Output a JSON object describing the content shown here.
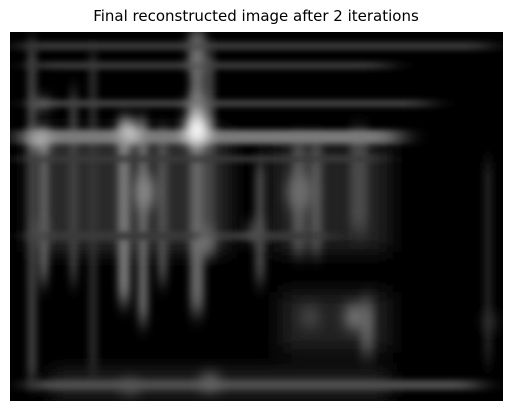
{
  "figure": {
    "title": "Final reconstructed image after 2 iterations",
    "image_description_icon": "grayscale-reconstruction-image",
    "colors": {
      "background": "#000000",
      "highlight": "#ffffff",
      "mid": "#8a8a8a"
    }
  }
}
